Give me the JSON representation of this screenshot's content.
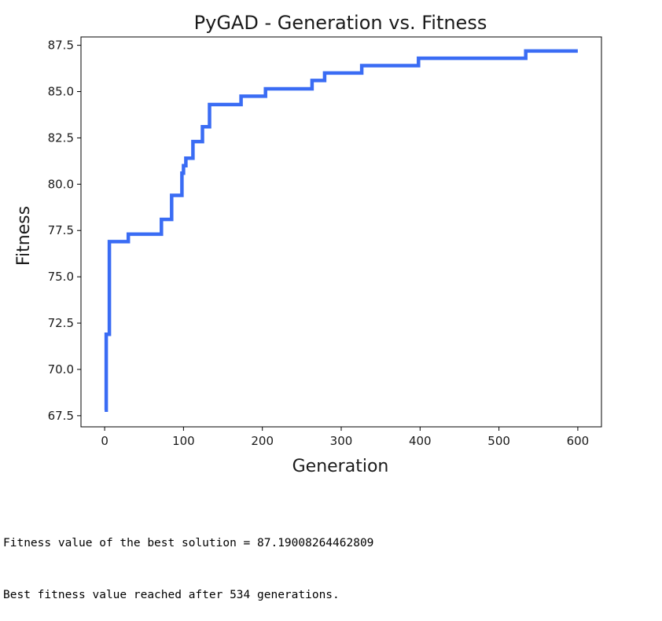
{
  "chart_data": {
    "type": "line",
    "title": "PyGAD - Generation vs. Fitness",
    "xlabel": "Generation",
    "ylabel": "Fitness",
    "xlim": [
      -30,
      630
    ],
    "ylim": [
      66.9,
      87.95
    ],
    "x_ticks": [
      0,
      100,
      200,
      300,
      400,
      500,
      600
    ],
    "y_ticks": [
      67.5,
      70.0,
      72.5,
      75.0,
      77.5,
      80.0,
      82.5,
      85.0,
      87.5
    ],
    "x_tick_labels": [
      "0",
      "100",
      "200",
      "300",
      "400",
      "500",
      "600"
    ],
    "y_tick_labels": [
      "67.5",
      "70.0",
      "72.5",
      "75.0",
      "77.5",
      "80.0",
      "82.5",
      "85.0",
      "87.5"
    ],
    "grid": false,
    "series": [
      {
        "color": "#3a6cf4",
        "points": [
          [
            0,
            67.8
          ],
          [
            2,
            67.8
          ],
          [
            2,
            71.9
          ],
          [
            6,
            71.9
          ],
          [
            6,
            76.9
          ],
          [
            30,
            76.9
          ],
          [
            30,
            77.3
          ],
          [
            72,
            77.3
          ],
          [
            72,
            78.1
          ],
          [
            85,
            78.1
          ],
          [
            85,
            79.4
          ],
          [
            98,
            79.4
          ],
          [
            98,
            80.6
          ],
          [
            100,
            80.6
          ],
          [
            100,
            81.0
          ],
          [
            103,
            81.0
          ],
          [
            103,
            81.4
          ],
          [
            112,
            81.4
          ],
          [
            112,
            82.3
          ],
          [
            124,
            82.3
          ],
          [
            124,
            83.1
          ],
          [
            133,
            83.1
          ],
          [
            133,
            84.3
          ],
          [
            173,
            84.3
          ],
          [
            173,
            84.75
          ],
          [
            204,
            84.75
          ],
          [
            204,
            85.15
          ],
          [
            263,
            85.15
          ],
          [
            263,
            85.6
          ],
          [
            279,
            85.6
          ],
          [
            279,
            86.0
          ],
          [
            326,
            86.0
          ],
          [
            326,
            86.4
          ],
          [
            398,
            86.4
          ],
          [
            398,
            86.8
          ],
          [
            534,
            86.8
          ],
          [
            534,
            87.19
          ],
          [
            600,
            87.19
          ]
        ]
      }
    ]
  },
  "console": {
    "line1": "Fitness value of the best solution = 87.19008264462809",
    "line2": "Best fitness value reached after 534 generations."
  }
}
